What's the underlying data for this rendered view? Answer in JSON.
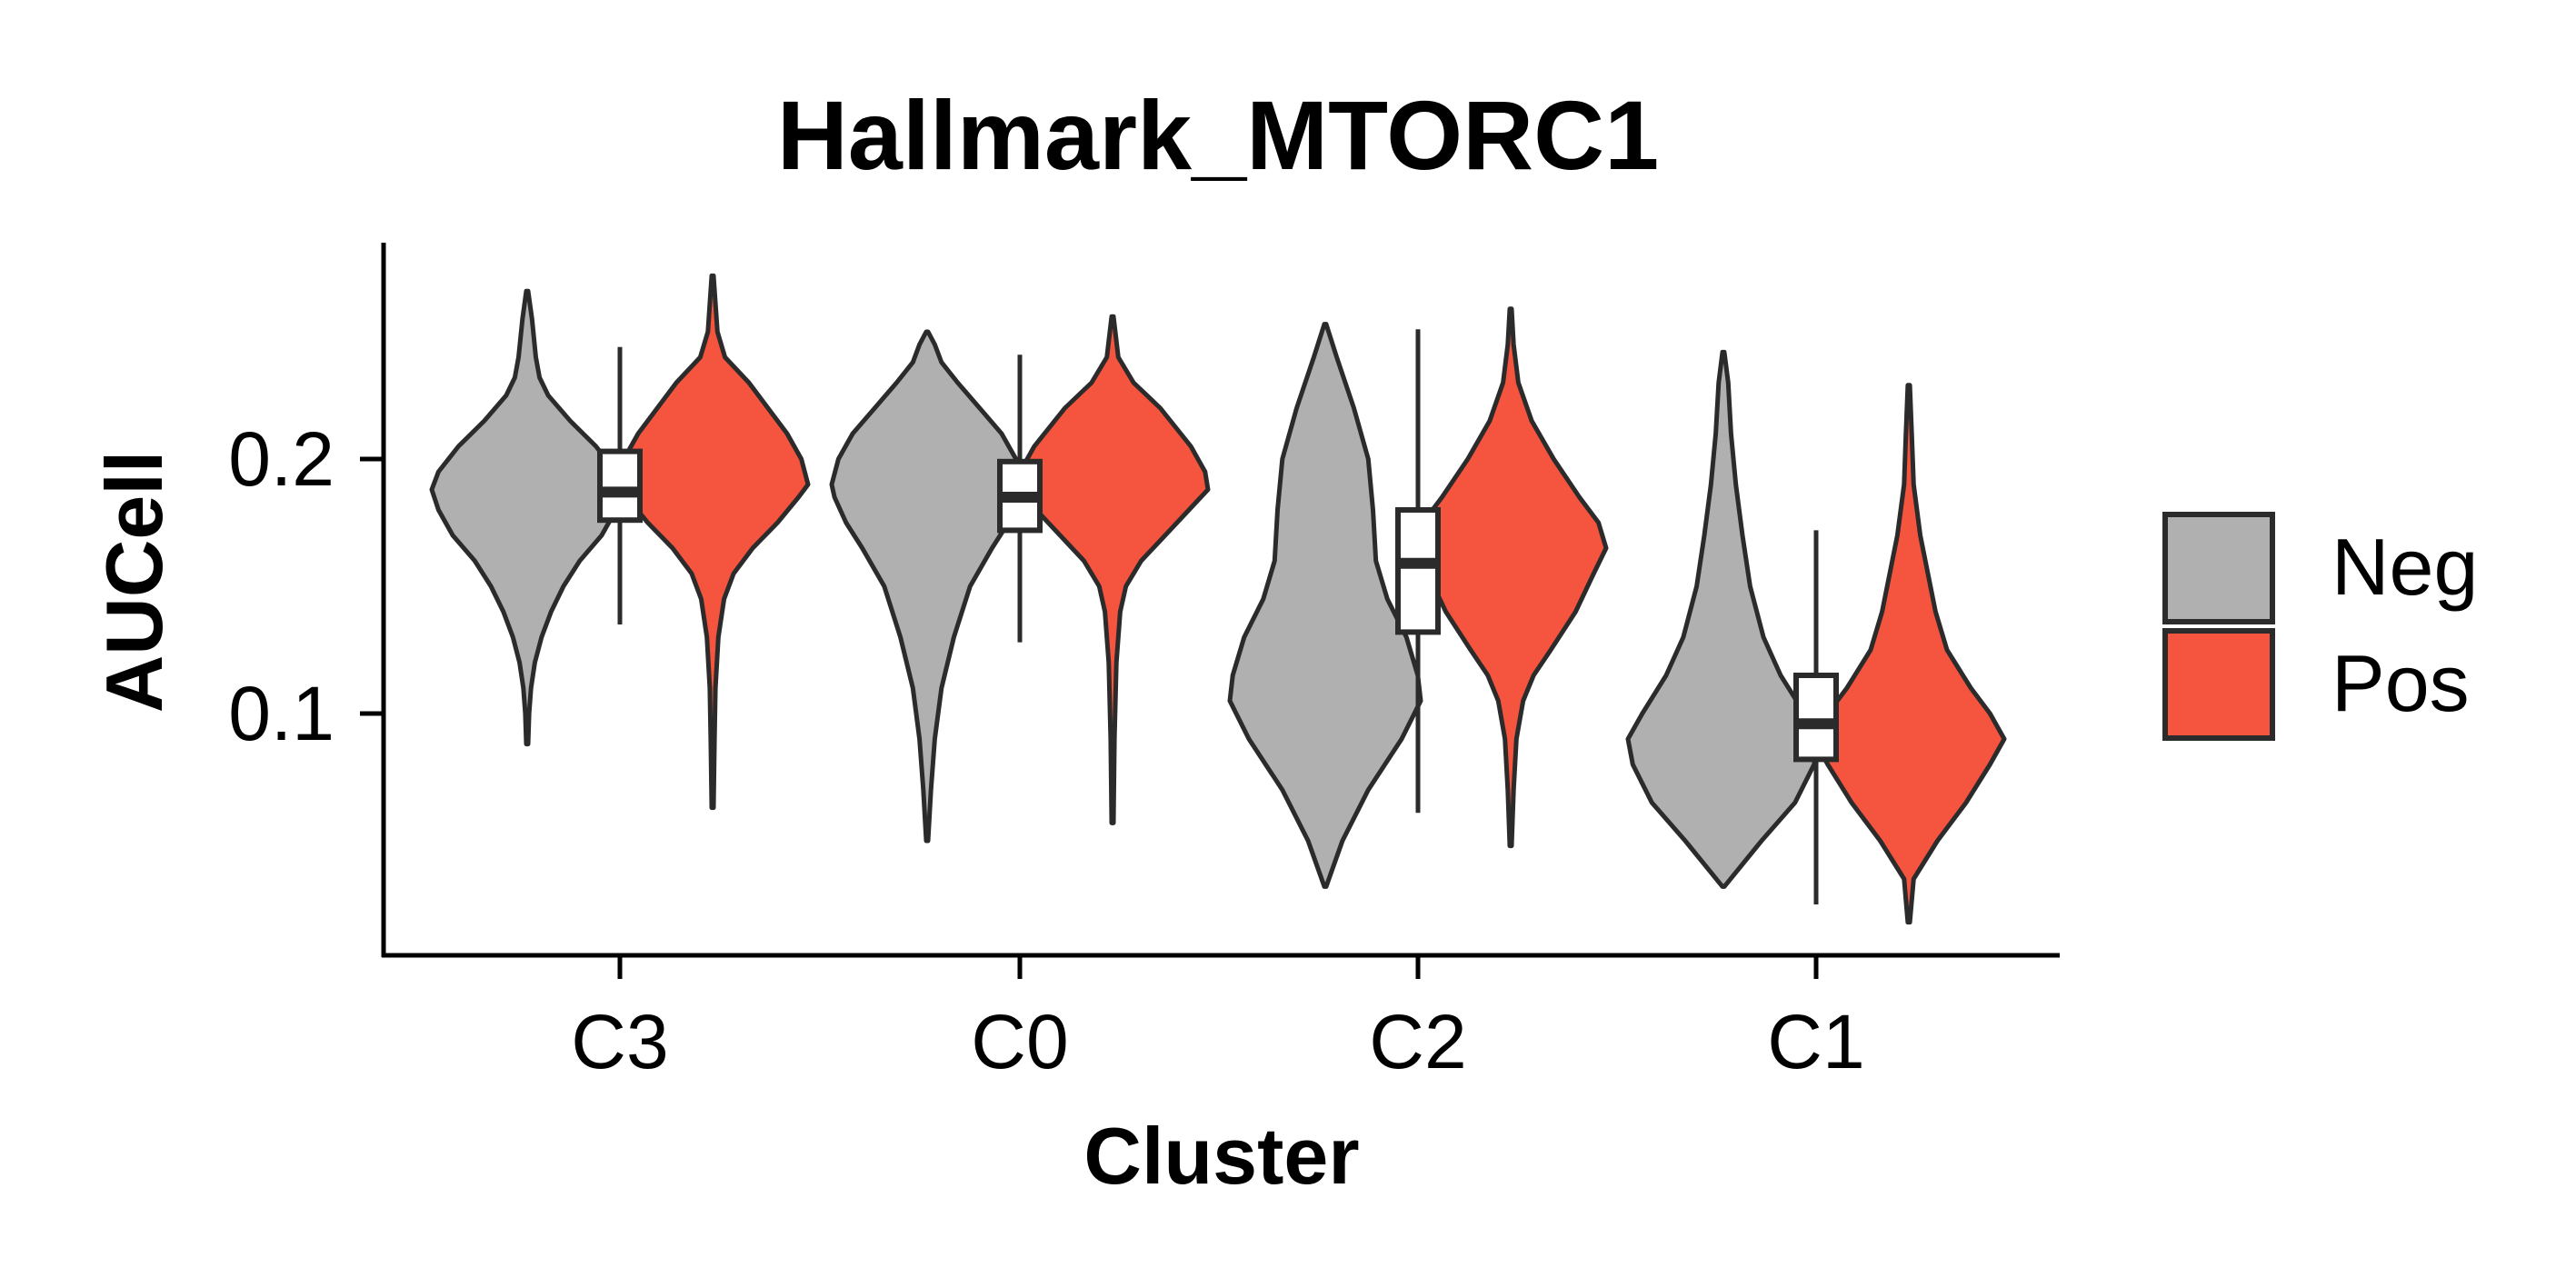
{
  "chart_data": {
    "type": "violin",
    "title": "Hallmark_MTORC1",
    "xlabel": "Cluster",
    "ylabel": "AUCell",
    "categories": [
      "C3",
      "C0",
      "C2",
      "C1"
    ],
    "ylim": [
      0.005,
      0.285
    ],
    "yticks": [
      0.1,
      0.2
    ],
    "ytick_labels": [
      "0.1",
      "0.2"
    ],
    "grid": false,
    "legend": {
      "position": "right",
      "entries": [
        {
          "label": "Neg",
          "color": "#B0B0B0"
        },
        {
          "label": "Pos",
          "color": "#F5543E"
        }
      ]
    },
    "series": [
      {
        "name": "Neg",
        "color": "#B0B0B0",
        "violins": [
          {
            "category": "C3",
            "min": 0.088,
            "max": 0.266,
            "profile": [
              [
                0.088,
                0.01
              ],
              [
                0.1,
                0.02
              ],
              [
                0.11,
                0.04
              ],
              [
                0.12,
                0.08
              ],
              [
                0.13,
                0.15
              ],
              [
                0.14,
                0.25
              ],
              [
                0.15,
                0.38
              ],
              [
                0.16,
                0.55
              ],
              [
                0.17,
                0.78
              ],
              [
                0.18,
                0.93
              ],
              [
                0.188,
                1.0
              ],
              [
                0.195,
                0.93
              ],
              [
                0.205,
                0.72
              ],
              [
                0.215,
                0.45
              ],
              [
                0.225,
                0.22
              ],
              [
                0.232,
                0.13
              ],
              [
                0.24,
                0.09
              ],
              [
                0.255,
                0.05
              ],
              [
                0.266,
                0.01
              ]
            ]
          },
          {
            "category": "C0",
            "min": 0.05,
            "max": 0.25,
            "profile": [
              [
                0.05,
                0.01
              ],
              [
                0.07,
                0.04
              ],
              [
                0.09,
                0.08
              ],
              [
                0.11,
                0.15
              ],
              [
                0.13,
                0.28
              ],
              [
                0.15,
                0.45
              ],
              [
                0.165,
                0.68
              ],
              [
                0.175,
                0.85
              ],
              [
                0.185,
                0.97
              ],
              [
                0.19,
                1.0
              ],
              [
                0.2,
                0.93
              ],
              [
                0.21,
                0.78
              ],
              [
                0.22,
                0.55
              ],
              [
                0.23,
                0.32
              ],
              [
                0.238,
                0.15
              ],
              [
                0.245,
                0.08
              ],
              [
                0.25,
                0.01
              ]
            ]
          },
          {
            "category": "C2",
            "min": 0.032,
            "max": 0.253,
            "profile": [
              [
                0.032,
                0.01
              ],
              [
                0.05,
                0.18
              ],
              [
                0.07,
                0.45
              ],
              [
                0.09,
                0.8
              ],
              [
                0.105,
                1.0
              ],
              [
                0.115,
                0.97
              ],
              [
                0.13,
                0.85
              ],
              [
                0.145,
                0.65
              ],
              [
                0.16,
                0.53
              ],
              [
                0.18,
                0.5
              ],
              [
                0.2,
                0.45
              ],
              [
                0.22,
                0.3
              ],
              [
                0.24,
                0.12
              ],
              [
                0.253,
                0.01
              ]
            ]
          },
          {
            "category": "C1",
            "min": 0.032,
            "max": 0.242,
            "profile": [
              [
                0.032,
                0.01
              ],
              [
                0.05,
                0.4
              ],
              [
                0.065,
                0.75
              ],
              [
                0.08,
                0.95
              ],
              [
                0.09,
                1.0
              ],
              [
                0.1,
                0.85
              ],
              [
                0.115,
                0.6
              ],
              [
                0.13,
                0.42
              ],
              [
                0.15,
                0.28
              ],
              [
                0.17,
                0.2
              ],
              [
                0.19,
                0.13
              ],
              [
                0.21,
                0.08
              ],
              [
                0.23,
                0.05
              ],
              [
                0.242,
                0.01
              ]
            ]
          }
        ],
        "boxes": [
          {
            "category": "C3",
            "whisker_low": 0.135,
            "q1": 0.176,
            "median": 0.187,
            "q3": 0.203,
            "whisker_high": 0.244
          },
          {
            "category": "C0",
            "whisker_low": 0.128,
            "q1": 0.172,
            "median": 0.185,
            "q3": 0.199,
            "whisker_high": 0.241
          },
          {
            "category": "C2",
            "whisker_low": 0.061,
            "q1": 0.132,
            "median": 0.159,
            "q3": 0.18,
            "whisker_high": 0.251
          },
          {
            "category": "C1",
            "whisker_low": 0.025,
            "q1": 0.082,
            "median": 0.096,
            "q3": 0.115,
            "whisker_high": 0.172
          }
        ]
      },
      {
        "name": "Pos",
        "color": "#F5543E",
        "violins": [
          {
            "category": "C3",
            "min": 0.063,
            "max": 0.272,
            "profile": [
              [
                0.063,
                0.01
              ],
              [
                0.09,
                0.02
              ],
              [
                0.11,
                0.03
              ],
              [
                0.13,
                0.06
              ],
              [
                0.145,
                0.12
              ],
              [
                0.155,
                0.22
              ],
              [
                0.165,
                0.42
              ],
              [
                0.175,
                0.68
              ],
              [
                0.185,
                0.9
              ],
              [
                0.19,
                1.0
              ],
              [
                0.2,
                0.93
              ],
              [
                0.21,
                0.78
              ],
              [
                0.22,
                0.58
              ],
              [
                0.23,
                0.38
              ],
              [
                0.24,
                0.13
              ],
              [
                0.25,
                0.05
              ],
              [
                0.272,
                0.01
              ]
            ]
          },
          {
            "category": "C0",
            "min": 0.057,
            "max": 0.256,
            "profile": [
              [
                0.057,
                0.01
              ],
              [
                0.09,
                0.02
              ],
              [
                0.12,
                0.04
              ],
              [
                0.14,
                0.08
              ],
              [
                0.15,
                0.14
              ],
              [
                0.16,
                0.3
              ],
              [
                0.17,
                0.55
              ],
              [
                0.18,
                0.8
              ],
              [
                0.188,
                1.0
              ],
              [
                0.195,
                0.97
              ],
              [
                0.205,
                0.82
              ],
              [
                0.22,
                0.5
              ],
              [
                0.23,
                0.22
              ],
              [
                0.24,
                0.06
              ],
              [
                0.256,
                0.01
              ]
            ]
          },
          {
            "category": "C2",
            "min": 0.048,
            "max": 0.259,
            "profile": [
              [
                0.048,
                0.01
              ],
              [
                0.07,
                0.03
              ],
              [
                0.09,
                0.06
              ],
              [
                0.105,
                0.13
              ],
              [
                0.115,
                0.24
              ],
              [
                0.125,
                0.42
              ],
              [
                0.14,
                0.68
              ],
              [
                0.155,
                0.87
              ],
              [
                0.165,
                1.0
              ],
              [
                0.175,
                0.92
              ],
              [
                0.185,
                0.72
              ],
              [
                0.2,
                0.45
              ],
              [
                0.215,
                0.22
              ],
              [
                0.23,
                0.08
              ],
              [
                0.245,
                0.03
              ],
              [
                0.259,
                0.01
              ]
            ]
          },
          {
            "category": "C1",
            "min": 0.018,
            "max": 0.229,
            "profile": [
              [
                0.018,
                0.01
              ],
              [
                0.035,
                0.05
              ],
              [
                0.05,
                0.3
              ],
              [
                0.065,
                0.6
              ],
              [
                0.08,
                0.85
              ],
              [
                0.09,
                1.0
              ],
              [
                0.1,
                0.85
              ],
              [
                0.11,
                0.65
              ],
              [
                0.125,
                0.4
              ],
              [
                0.14,
                0.28
              ],
              [
                0.155,
                0.2
              ],
              [
                0.17,
                0.12
              ],
              [
                0.19,
                0.05
              ],
              [
                0.21,
                0.03
              ],
              [
                0.229,
                0.01
              ]
            ]
          }
        ]
      }
    ]
  }
}
